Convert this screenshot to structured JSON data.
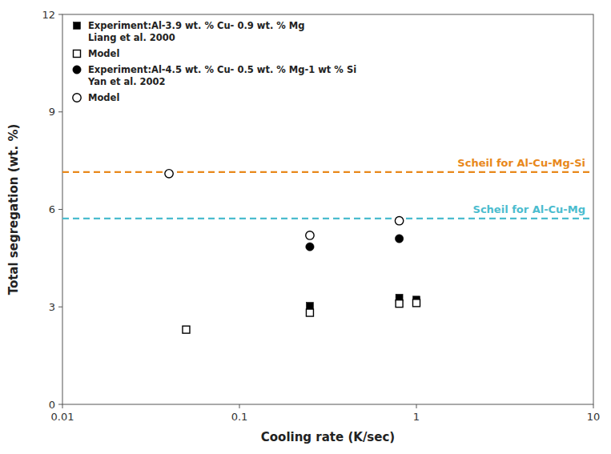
{
  "chart_data": {
    "type": "scatter",
    "xlabel": "Cooling rate (K/sec)",
    "ylabel": "Total segregation (wt. %)",
    "log": "x",
    "xlim": [
      0.01,
      10
    ],
    "ylim": [
      0,
      12
    ],
    "xticks": [
      0.01,
      0.1,
      1,
      10
    ],
    "yticks": [
      0,
      3,
      6,
      9,
      12
    ],
    "grid": false,
    "legend": "upper left",
    "series": [
      {
        "name": "Scheil for Al-Cu-Mg-Si",
        "type": "hline",
        "color": "#e8881a",
        "line_style": "dashed",
        "values": [
          7.15
        ]
      },
      {
        "name": "Scheil for Al-Cu-Mg",
        "type": "hline",
        "color": "#4bbcce",
        "line_style": "dashed",
        "values": [
          5.72
        ]
      },
      {
        "name": "Experiment:Al-3.9 wt. % Cu- 0.9 wt. % Mg\nLiang et al. 2000",
        "type": "scatter",
        "marker": "square",
        "color": "#000000",
        "x": [
          0.25,
          0.8,
          1.0
        ],
        "values": [
          3.03,
          3.28,
          3.22
        ]
      },
      {
        "name": "Model",
        "type": "scatter",
        "marker": "square-open",
        "color": "#000000",
        "x": [
          0.05,
          0.25,
          0.8,
          1.0
        ],
        "values": [
          2.3,
          2.82,
          3.1,
          3.12
        ]
      },
      {
        "name": "Experiment:Al-4.5 wt. % Cu- 0.5 wt. % Mg-1 wt % Si\nYan et al. 2002",
        "type": "scatter",
        "marker": "circle",
        "color": "#000000",
        "x": [
          0.25,
          0.8
        ],
        "values": [
          4.85,
          5.1
        ]
      },
      {
        "name": "Model",
        "type": "scatter",
        "marker": "circle-open",
        "color": "#000000",
        "x": [
          0.04,
          0.25,
          0.8
        ],
        "values": [
          7.1,
          5.2,
          5.65
        ]
      }
    ]
  }
}
